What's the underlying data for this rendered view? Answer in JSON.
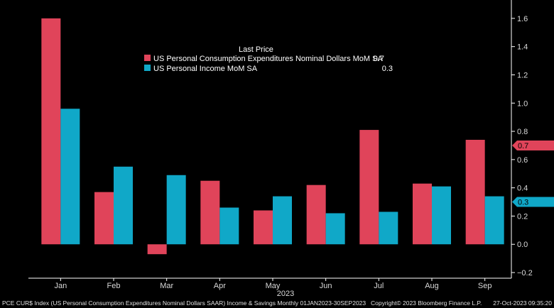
{
  "colors": {
    "pce": "#e0445a",
    "income": "#10a8c8",
    "background": "#000000",
    "axis": "#ffffff"
  },
  "legend": {
    "title": "Last Price",
    "entries": [
      {
        "label": "US Personal Consumption Expenditures Nominal Dollars MoM SA",
        "value": "0.7"
      },
      {
        "label": "US Personal Income MoM SA",
        "value": "0.3"
      }
    ]
  },
  "footer": {
    "left": "PCE CUR$ Index (US Personal Consumption Expenditures Nominal Dollars SAAR) Income & Savings  Monthly 01JAN2023-30SEP2023",
    "center": "Copyright© 2023 Bloomberg Finance L.P.",
    "right": "27-Oct-2023 09:35:20"
  },
  "chart_data": {
    "type": "bar",
    "categories": [
      "Jan",
      "Feb",
      "Mar",
      "Apr",
      "May",
      "Jun",
      "Jul",
      "Aug",
      "Sep"
    ],
    "xlabel": "2023",
    "ylabel": "",
    "ylim": [
      -0.24,
      1.72
    ],
    "yticks": [
      1.6,
      1.4,
      1.2,
      1.0,
      0.8,
      0.6,
      0.4,
      0.2,
      0.0,
      -0.2
    ],
    "ytick_labels": [
      "1.6",
      "1.4",
      "1.2",
      "1.0",
      "0.8",
      "0.6",
      "0.4",
      "0.2",
      "0.0",
      "−0.2"
    ],
    "grid": false,
    "legend_position": "top-center",
    "series": [
      {
        "name": "US Personal Consumption Expenditures Nominal Dollars MoM SA",
        "values": [
          1.6,
          0.37,
          -0.07,
          0.45,
          0.24,
          0.42,
          0.81,
          0.43,
          0.74
        ],
        "last": "0.7"
      },
      {
        "name": "US Personal Income MoM SA",
        "values": [
          0.96,
          0.55,
          0.49,
          0.26,
          0.34,
          0.22,
          0.23,
          0.41,
          0.34
        ],
        "last": "0.3"
      }
    ]
  }
}
